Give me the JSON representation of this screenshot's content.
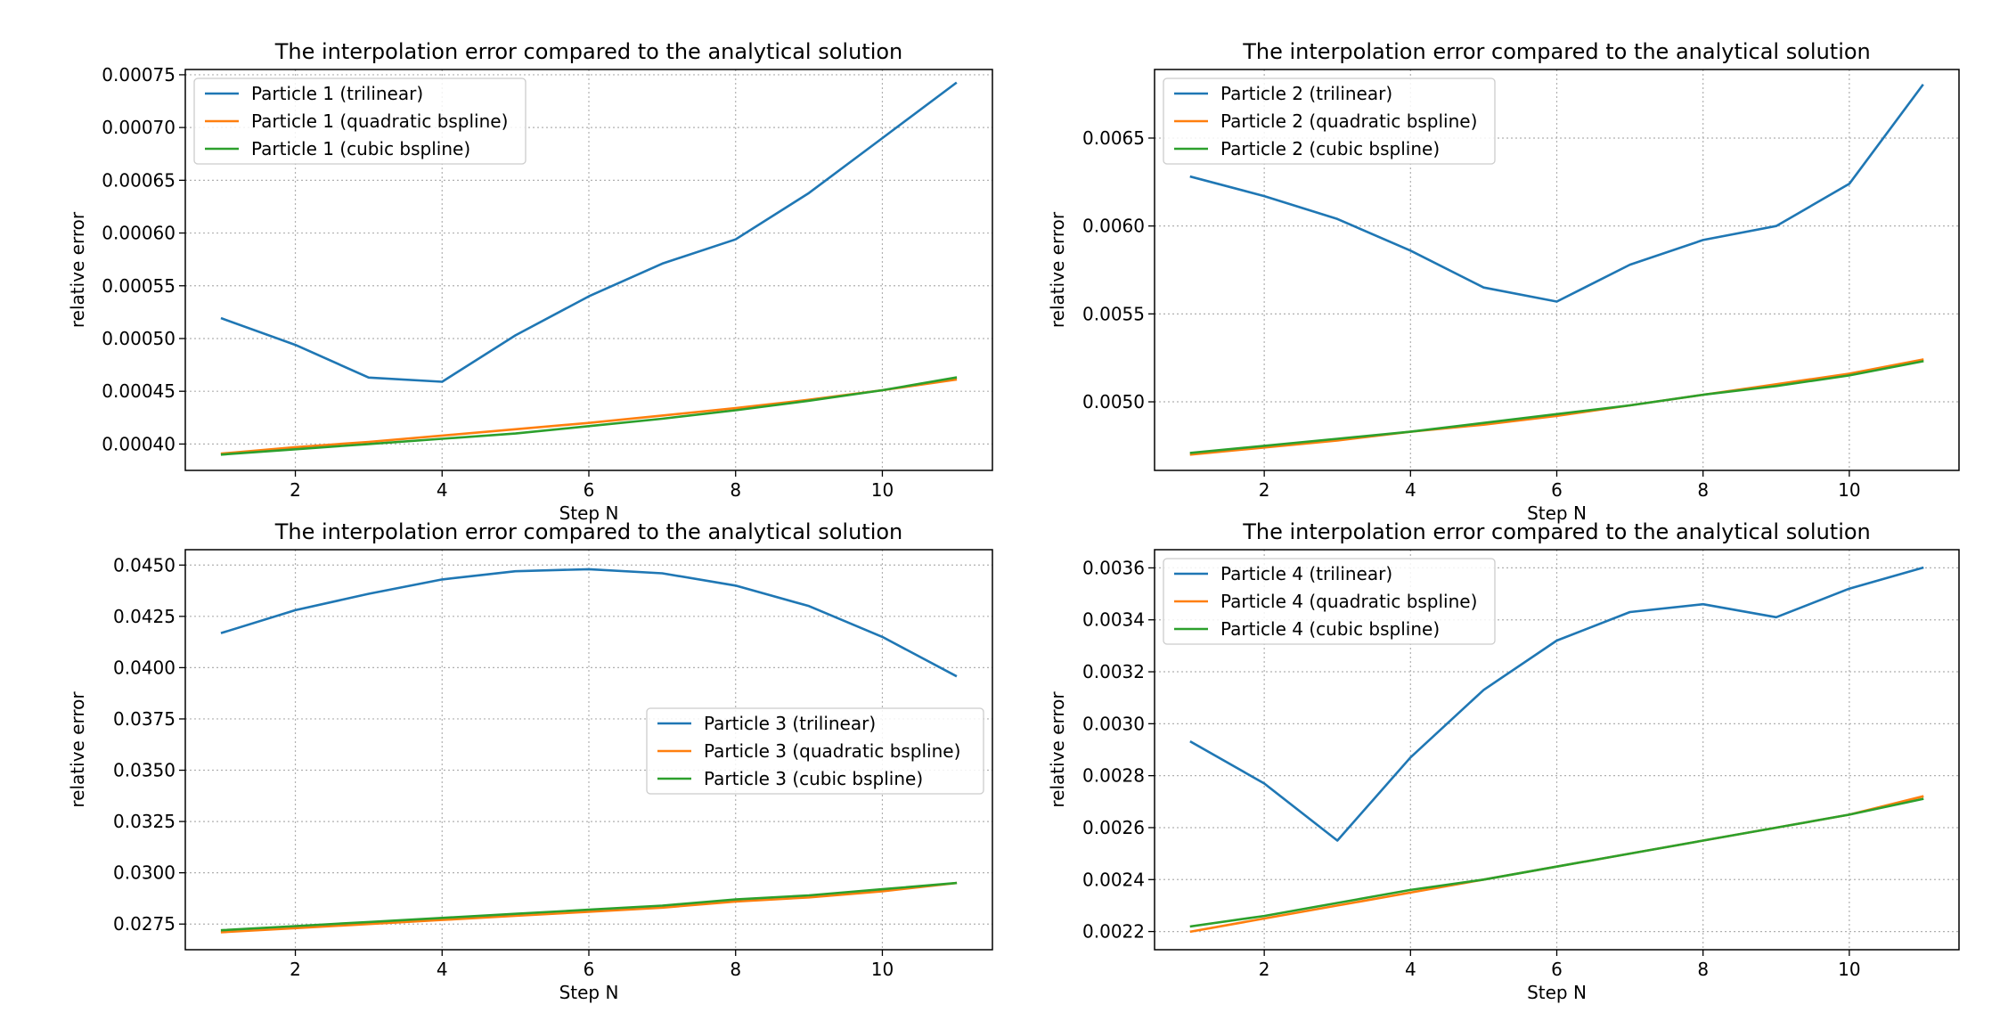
{
  "figure": {
    "layout": "2x2 grid of line charts"
  },
  "chart_data": [
    {
      "type": "line",
      "title": "The interpolation error compared to the analytical solution",
      "xlabel": "Step N",
      "ylabel": "relative error",
      "x": [
        1,
        2,
        3,
        4,
        5,
        6,
        7,
        8,
        9,
        10,
        11
      ],
      "xlim": [
        0.5,
        11.5
      ],
      "ylim": [
        0.000375,
        0.000755
      ],
      "xticks": [
        2,
        4,
        6,
        8,
        10
      ],
      "yticks": [
        0.0004,
        0.00045,
        0.0005,
        0.00055,
        0.0006,
        0.00065,
        0.0007,
        0.00075
      ],
      "ytick_labels": [
        "0.00040",
        "0.00045",
        "0.00050",
        "0.00055",
        "0.00060",
        "0.00065",
        "0.00070",
        "0.00075"
      ],
      "grid": true,
      "legend_position": "upper-left",
      "series": [
        {
          "name": "Particle 1 (trilinear)",
          "color": "#1f77b4",
          "values": [
            0.000519,
            0.000494,
            0.000463,
            0.000459,
            0.000503,
            0.00054,
            0.000571,
            0.000594,
            0.000638,
            0.00069,
            0.000742
          ]
        },
        {
          "name": "Particle 1 (quadratic bspline)",
          "color": "#ff7f0e",
          "values": [
            0.000391,
            0.000397,
            0.000402,
            0.000408,
            0.000414,
            0.00042,
            0.000427,
            0.000434,
            0.000442,
            0.000451,
            0.000461
          ]
        },
        {
          "name": "Particle 1 (cubic bspline)",
          "color": "#2ca02c",
          "values": [
            0.00039,
            0.000395,
            0.0004,
            0.000405,
            0.00041,
            0.000417,
            0.000424,
            0.000432,
            0.000441,
            0.000451,
            0.000463
          ]
        }
      ]
    },
    {
      "type": "line",
      "title": "The interpolation error compared to the analytical solution",
      "xlabel": "Step N",
      "ylabel": "relative error",
      "x": [
        1,
        2,
        3,
        4,
        5,
        6,
        7,
        8,
        9,
        10,
        11
      ],
      "xlim": [
        0.5,
        11.5
      ],
      "ylim": [
        0.00461,
        0.00689
      ],
      "xticks": [
        2,
        4,
        6,
        8,
        10
      ],
      "yticks": [
        0.005,
        0.0055,
        0.006,
        0.0065
      ],
      "ytick_labels": [
        "0.0050",
        "0.0055",
        "0.0060",
        "0.0065"
      ],
      "grid": true,
      "legend_position": "upper-left",
      "series": [
        {
          "name": "Particle 2 (trilinear)",
          "color": "#1f77b4",
          "values": [
            0.00628,
            0.00617,
            0.00604,
            0.00586,
            0.00565,
            0.00557,
            0.00578,
            0.00592,
            0.006,
            0.00624,
            0.0068
          ]
        },
        {
          "name": "Particle 2 (quadratic bspline)",
          "color": "#ff7f0e",
          "values": [
            0.0047,
            0.00474,
            0.00478,
            0.00483,
            0.00487,
            0.00492,
            0.00498,
            0.00504,
            0.0051,
            0.00516,
            0.00524
          ]
        },
        {
          "name": "Particle 2 (cubic bspline)",
          "color": "#2ca02c",
          "values": [
            0.00471,
            0.00475,
            0.00479,
            0.00483,
            0.00488,
            0.00493,
            0.00498,
            0.00504,
            0.00509,
            0.00515,
            0.00523
          ]
        }
      ]
    },
    {
      "type": "line",
      "title": "The interpolation error compared to the analytical solution",
      "xlabel": "Step N",
      "ylabel": "relative error",
      "x": [
        1,
        2,
        3,
        4,
        5,
        6,
        7,
        8,
        9,
        10,
        11
      ],
      "xlim": [
        0.5,
        11.5
      ],
      "ylim": [
        0.02625,
        0.04575
      ],
      "xticks": [
        2,
        4,
        6,
        8,
        10
      ],
      "yticks": [
        0.0275,
        0.03,
        0.0325,
        0.035,
        0.0375,
        0.04,
        0.0425,
        0.045
      ],
      "ytick_labels": [
        "0.0275",
        "0.0300",
        "0.0325",
        "0.0350",
        "0.0375",
        "0.0400",
        "0.0425",
        "0.0450"
      ],
      "grid": true,
      "legend_position": "center-right",
      "series": [
        {
          "name": "Particle 3 (trilinear)",
          "color": "#1f77b4",
          "values": [
            0.0417,
            0.0428,
            0.0436,
            0.0443,
            0.0447,
            0.0448,
            0.0446,
            0.044,
            0.043,
            0.0415,
            0.0396
          ]
        },
        {
          "name": "Particle 3 (quadratic bspline)",
          "color": "#ff7f0e",
          "values": [
            0.0271,
            0.0273,
            0.0275,
            0.0277,
            0.0279,
            0.0281,
            0.0283,
            0.0286,
            0.0288,
            0.0291,
            0.0295
          ]
        },
        {
          "name": "Particle 3 (cubic bspline)",
          "color": "#2ca02c",
          "values": [
            0.0272,
            0.0274,
            0.0276,
            0.0278,
            0.028,
            0.0282,
            0.0284,
            0.0287,
            0.0289,
            0.0292,
            0.0295
          ]
        }
      ]
    },
    {
      "type": "line",
      "title": "The interpolation error compared to the analytical solution",
      "xlabel": "Step N",
      "ylabel": "relative error",
      "x": [
        1,
        2,
        3,
        4,
        5,
        6,
        7,
        8,
        9,
        10,
        11
      ],
      "xlim": [
        0.5,
        11.5
      ],
      "ylim": [
        0.00213,
        0.00367
      ],
      "xticks": [
        2,
        4,
        6,
        8,
        10
      ],
      "yticks": [
        0.0022,
        0.0024,
        0.0026,
        0.0028,
        0.003,
        0.0032,
        0.0034,
        0.0036
      ],
      "ytick_labels": [
        "0.0022",
        "0.0024",
        "0.0026",
        "0.0028",
        "0.0030",
        "0.0032",
        "0.0034",
        "0.0036"
      ],
      "grid": true,
      "legend_position": "upper-left",
      "series": [
        {
          "name": "Particle 4 (trilinear)",
          "color": "#1f77b4",
          "values": [
            0.00293,
            0.00277,
            0.00255,
            0.00287,
            0.00313,
            0.00332,
            0.00343,
            0.00346,
            0.00341,
            0.00352,
            0.0036
          ]
        },
        {
          "name": "Particle 4 (quadratic bspline)",
          "color": "#ff7f0e",
          "values": [
            0.0022,
            0.00225,
            0.0023,
            0.00235,
            0.0024,
            0.00245,
            0.0025,
            0.00255,
            0.0026,
            0.00265,
            0.00272
          ]
        },
        {
          "name": "Particle 4 (cubic bspline)",
          "color": "#2ca02c",
          "values": [
            0.00222,
            0.00226,
            0.00231,
            0.00236,
            0.0024,
            0.00245,
            0.0025,
            0.00255,
            0.0026,
            0.00265,
            0.00271
          ]
        }
      ]
    }
  ]
}
